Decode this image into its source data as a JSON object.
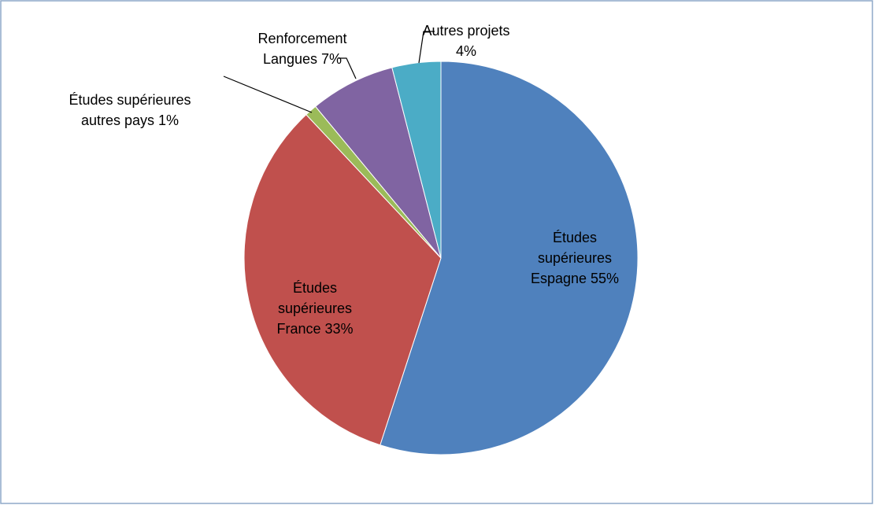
{
  "chart_data": {
    "type": "pie",
    "categories": [
      "Études supérieures Espagne",
      "Études supérieures France",
      "Études supérieures autres pays",
      "Renforcement Langues",
      "Autres projets"
    ],
    "values": [
      55,
      33,
      1,
      7,
      4
    ],
    "value_labels": [
      "55%",
      "33%",
      "1%",
      "7%",
      "4%"
    ],
    "colors": [
      "#4f81bd",
      "#c0504d",
      "#9bbb59",
      "#8064a2",
      "#4bacc6"
    ]
  }
}
